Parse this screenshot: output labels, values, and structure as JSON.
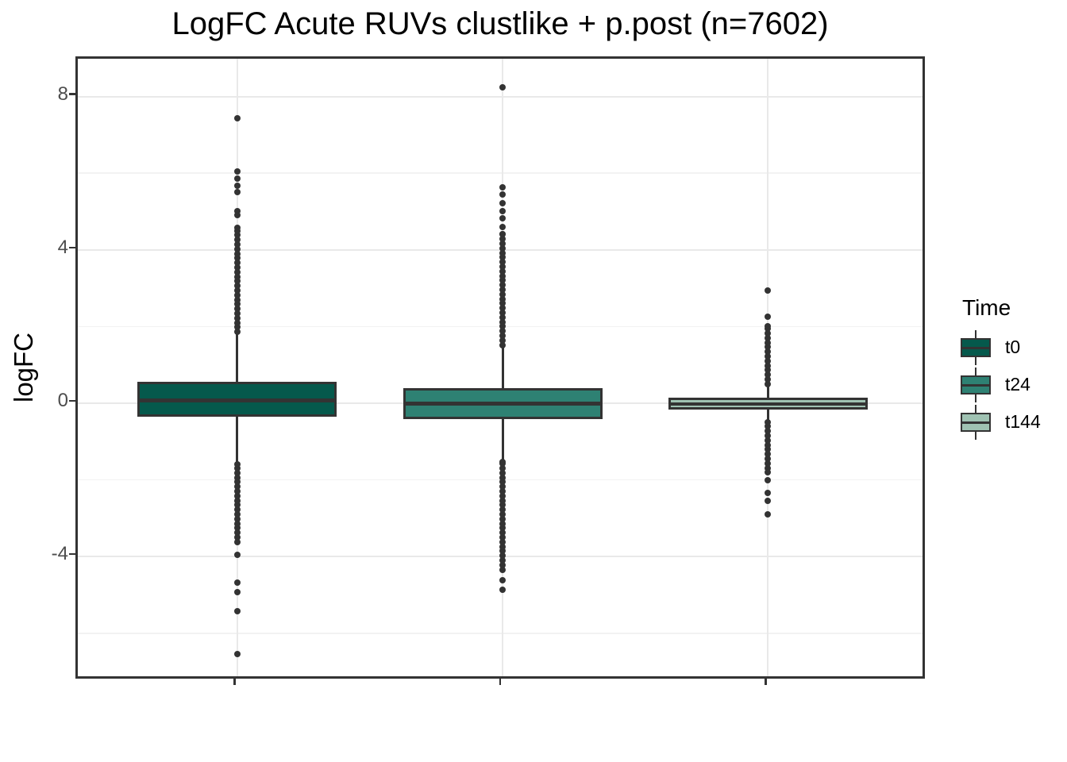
{
  "title": "LogFC Acute RUVs clustlike + p.post (n=7602)",
  "y_axis": {
    "label": "logFC",
    "major_ticks": [
      8,
      4,
      0,
      -4
    ],
    "minor_ticks": [
      6,
      2,
      -2,
      -6
    ],
    "range": [
      -7.25,
      9.0
    ]
  },
  "x_axis": {
    "label": "",
    "tick_labels": [
      "",
      "",
      ""
    ]
  },
  "legend": {
    "title": "Time",
    "entries": [
      {
        "label": "t0",
        "color": "#05594C"
      },
      {
        "label": "t24",
        "color": "#2E8173"
      },
      {
        "label": "t144",
        "color": "#9FC2B2"
      }
    ]
  },
  "colors": {
    "box_border": "#333333",
    "outlier": "#333333",
    "panel_border": "#333333",
    "grid_major": "#e9e9e9",
    "grid_minor": "#f2f2f2",
    "tick_label": "#4d4d4d"
  },
  "chart_data": {
    "type": "boxplot",
    "title": "LogFC Acute RUVs clustlike + p.post (n=7602)",
    "xlabel": "",
    "ylabel": "logFC",
    "ylim": [
      -7.25,
      9.0
    ],
    "grid": true,
    "legend_position": "right",
    "legend_title": "Time",
    "n": 7602,
    "groups": [
      {
        "name": "t0",
        "fill": "#05594C",
        "q1": -0.35,
        "median": 0.07,
        "q3": 0.56,
        "whisker_low": -1.59,
        "whisker_high": 1.82,
        "outliers_high_points": [
          7.43,
          6.05,
          5.85,
          5.68,
          5.5,
          5.02,
          4.9
        ],
        "outliers_high_range": [
          1.86,
          4.58
        ],
        "outliers_low_points": [
          -3.96,
          -4.68,
          -4.93,
          -5.42,
          -6.55
        ],
        "outliers_low_range": [
          -3.62,
          -1.6
        ]
      },
      {
        "name": "t24",
        "fill": "#2E8173",
        "q1": -0.41,
        "median": -0.01,
        "q3": 0.39,
        "whisker_low": -1.51,
        "whisker_high": 1.49,
        "outliers_high_points": [
          8.25,
          5.64,
          5.44,
          5.22,
          5.02,
          4.82,
          4.6
        ],
        "outliers_high_range": [
          1.52,
          4.42
        ],
        "outliers_low_points": [
          -4.62,
          -4.87
        ],
        "outliers_low_range": [
          -4.34,
          -1.54
        ]
      },
      {
        "name": "t144",
        "fill": "#9FC2B2",
        "q1": -0.17,
        "median": -0.02,
        "q3": 0.15,
        "whisker_low": -0.48,
        "whisker_high": 0.48,
        "outliers_high_points": [
          2.94,
          2.26
        ],
        "outliers_high_range": [
          0.5,
          2.01
        ],
        "outliers_low_points": [
          -1.8,
          -2.01,
          -2.33,
          -2.54,
          -2.9
        ],
        "outliers_low_range": [
          -1.69,
          -0.5
        ]
      }
    ]
  }
}
